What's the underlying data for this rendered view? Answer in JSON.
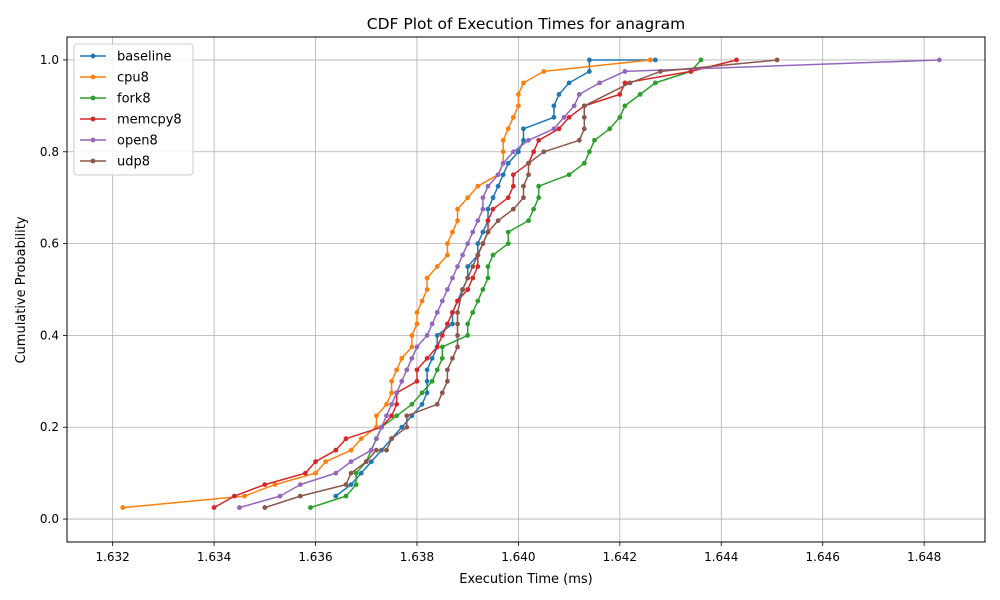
{
  "chart_data": {
    "type": "line",
    "title": "CDF Plot of Execution Times for anagram",
    "xlabel": "Execution Time (ms)",
    "ylabel": "Cumulative Probability",
    "xlim": [
      1.6311,
      1.6492
    ],
    "ylim": [
      -0.05,
      1.05
    ],
    "xticks": [
      "1.632",
      "1.634",
      "1.636",
      "1.638",
      "1.640",
      "1.642",
      "1.644",
      "1.646",
      "1.648"
    ],
    "yticks": [
      "0.0",
      "0.2",
      "0.4",
      "0.6",
      "0.8",
      "1.0"
    ],
    "grid": true,
    "legend_position": "top-left",
    "series": [
      {
        "name": "baseline",
        "color": "#1f77b4",
        "x": [
          1.6364,
          1.6367,
          1.6369,
          1.6371,
          1.6373,
          1.6375,
          1.6377,
          1.6379,
          1.6381,
          1.6382,
          1.6382,
          1.6382,
          1.6383,
          1.6384,
          1.6384,
          1.6387,
          1.6387,
          1.6388,
          1.6389,
          1.639,
          1.639,
          1.6392,
          1.6392,
          1.6393,
          1.6394,
          1.6394,
          1.6395,
          1.6396,
          1.6397,
          1.6398,
          1.64,
          1.6401,
          1.6401,
          1.6407,
          1.6407,
          1.6408,
          1.641,
          1.6414,
          1.6414,
          1.6427
        ],
        "y": [
          0.05,
          0.075,
          0.1,
          0.125,
          0.15,
          0.175,
          0.2,
          0.225,
          0.25,
          0.275,
          0.3,
          0.325,
          0.35,
          0.375,
          0.4,
          0.425,
          0.45,
          0.475,
          0.5,
          0.525,
          0.55,
          0.575,
          0.6,
          0.625,
          0.65,
          0.675,
          0.7,
          0.725,
          0.75,
          0.775,
          0.8,
          0.825,
          0.85,
          0.875,
          0.9,
          0.925,
          0.95,
          0.975,
          1.0,
          1.0
        ]
      },
      {
        "name": "cpu8",
        "color": "#ff7f0e",
        "x": [
          1.6322,
          1.6346,
          1.6352,
          1.636,
          1.6362,
          1.6367,
          1.6369,
          1.6372,
          1.6372,
          1.6374,
          1.6375,
          1.6375,
          1.6376,
          1.6377,
          1.6379,
          1.6379,
          1.638,
          1.638,
          1.6381,
          1.6382,
          1.6382,
          1.6384,
          1.6386,
          1.6386,
          1.6387,
          1.6388,
          1.6388,
          1.639,
          1.6392,
          1.6396,
          1.6397,
          1.6397,
          1.6397,
          1.6398,
          1.6399,
          1.64,
          1.64,
          1.6401,
          1.6405,
          1.6426
        ],
        "y": [
          0.025,
          0.05,
          0.075,
          0.1,
          0.125,
          0.15,
          0.175,
          0.2,
          0.225,
          0.25,
          0.275,
          0.3,
          0.325,
          0.35,
          0.375,
          0.4,
          0.425,
          0.45,
          0.475,
          0.5,
          0.525,
          0.55,
          0.575,
          0.6,
          0.625,
          0.65,
          0.675,
          0.7,
          0.725,
          0.75,
          0.775,
          0.8,
          0.825,
          0.85,
          0.875,
          0.9,
          0.925,
          0.95,
          0.975,
          1.0
        ]
      },
      {
        "name": "fork8",
        "color": "#2ca02c",
        "x": [
          1.6359,
          1.6366,
          1.6368,
          1.6368,
          1.637,
          1.6371,
          1.6372,
          1.6373,
          1.6373,
          1.6376,
          1.6379,
          1.6381,
          1.6383,
          1.6384,
          1.6385,
          1.6385,
          1.639,
          1.639,
          1.6391,
          1.6392,
          1.6393,
          1.6394,
          1.6394,
          1.6395,
          1.6398,
          1.6398,
          1.6402,
          1.6403,
          1.6404,
          1.6404,
          1.641,
          1.6413,
          1.6414,
          1.6415,
          1.6418,
          1.642,
          1.6421,
          1.6424,
          1.6427,
          1.6434,
          1.6436
        ],
        "y": [
          0.025,
          0.05,
          0.075,
          0.1,
          0.125,
          0.15,
          0.175,
          0.2,
          0.2,
          0.225,
          0.25,
          0.275,
          0.3,
          0.325,
          0.35,
          0.375,
          0.4,
          0.425,
          0.45,
          0.475,
          0.5,
          0.525,
          0.55,
          0.575,
          0.6,
          0.625,
          0.65,
          0.675,
          0.7,
          0.725,
          0.75,
          0.775,
          0.8,
          0.825,
          0.85,
          0.875,
          0.9,
          0.925,
          0.95,
          0.975,
          1.0
        ]
      },
      {
        "name": "memcpy8",
        "color": "#d62728",
        "x": [
          1.634,
          1.6344,
          1.635,
          1.6358,
          1.636,
          1.6364,
          1.6366,
          1.6373,
          1.6375,
          1.6376,
          1.6376,
          1.638,
          1.638,
          1.6382,
          1.6384,
          1.6385,
          1.6386,
          1.6387,
          1.6388,
          1.639,
          1.6391,
          1.6392,
          1.6392,
          1.6393,
          1.6394,
          1.6394,
          1.6395,
          1.6398,
          1.6399,
          1.6399,
          1.6402,
          1.6403,
          1.6404,
          1.6408,
          1.641,
          1.6413,
          1.642,
          1.6421,
          1.6434,
          1.6443
        ],
        "y": [
          0.025,
          0.05,
          0.075,
          0.1,
          0.125,
          0.15,
          0.175,
          0.2,
          0.225,
          0.25,
          0.275,
          0.3,
          0.325,
          0.35,
          0.375,
          0.4,
          0.425,
          0.45,
          0.475,
          0.5,
          0.525,
          0.55,
          0.575,
          0.6,
          0.625,
          0.65,
          0.675,
          0.7,
          0.725,
          0.75,
          0.775,
          0.8,
          0.825,
          0.85,
          0.875,
          0.9,
          0.925,
          0.95,
          0.975,
          1.0
        ]
      },
      {
        "name": "open8",
        "color": "#9467bd",
        "x": [
          1.6345,
          1.6353,
          1.6357,
          1.6364,
          1.6367,
          1.6371,
          1.6372,
          1.6373,
          1.6374,
          1.6375,
          1.6376,
          1.6377,
          1.6378,
          1.6379,
          1.638,
          1.6382,
          1.6383,
          1.6384,
          1.6385,
          1.6386,
          1.6387,
          1.6388,
          1.6389,
          1.639,
          1.6391,
          1.6392,
          1.6393,
          1.6393,
          1.6394,
          1.6396,
          1.6397,
          1.6399,
          1.6402,
          1.6407,
          1.6409,
          1.6411,
          1.6412,
          1.6416,
          1.6421,
          1.6483
        ],
        "y": [
          0.025,
          0.05,
          0.075,
          0.1,
          0.125,
          0.15,
          0.175,
          0.2,
          0.225,
          0.25,
          0.275,
          0.3,
          0.325,
          0.35,
          0.375,
          0.4,
          0.425,
          0.45,
          0.475,
          0.5,
          0.525,
          0.55,
          0.575,
          0.6,
          0.625,
          0.65,
          0.675,
          0.7,
          0.725,
          0.75,
          0.775,
          0.8,
          0.825,
          0.85,
          0.875,
          0.9,
          0.925,
          0.95,
          0.975,
          1.0
        ]
      },
      {
        "name": "udp8",
        "color": "#8c564b",
        "x": [
          1.635,
          1.6357,
          1.6366,
          1.6367,
          1.637,
          1.6372,
          1.6374,
          1.6375,
          1.6378,
          1.6378,
          1.6384,
          1.6385,
          1.6386,
          1.6386,
          1.6387,
          1.6388,
          1.6388,
          1.6388,
          1.6388,
          1.6389,
          1.639,
          1.6391,
          1.6392,
          1.6393,
          1.6394,
          1.6396,
          1.6399,
          1.6401,
          1.6401,
          1.6402,
          1.6402,
          1.6402,
          1.6405,
          1.6412,
          1.6413,
          1.6413,
          1.6413,
          1.6422,
          1.6428,
          1.6451
        ],
        "y": [
          0.025,
          0.05,
          0.075,
          0.1,
          0.125,
          0.15,
          0.15,
          0.175,
          0.2,
          0.225,
          0.25,
          0.275,
          0.3,
          0.325,
          0.35,
          0.375,
          0.4,
          0.425,
          0.45,
          0.5,
          0.525,
          0.55,
          0.575,
          0.6,
          0.625,
          0.65,
          0.675,
          0.7,
          0.725,
          0.75,
          0.775,
          0.775,
          0.8,
          0.825,
          0.85,
          0.875,
          0.9,
          0.95,
          0.975,
          1.0
        ]
      }
    ]
  }
}
